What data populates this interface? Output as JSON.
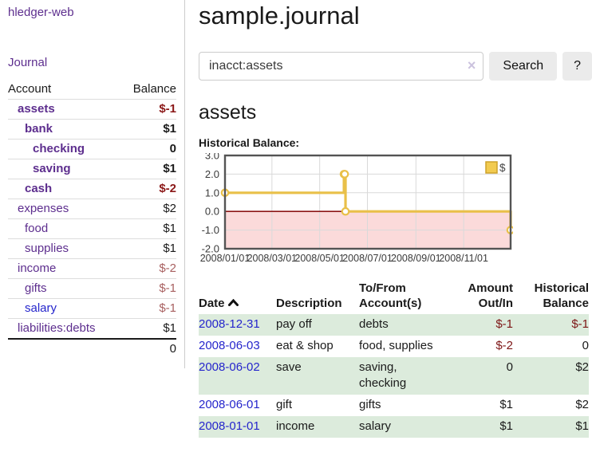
{
  "sidebar": {
    "brand": "hledger-web",
    "journal_link": "Journal",
    "accounts_table": {
      "col_account": "Account",
      "col_balance": "Balance",
      "rows": [
        {
          "name": "assets",
          "balance": "$-1"
        },
        {
          "name": "bank",
          "balance": "$1"
        },
        {
          "name": "checking",
          "balance": "0"
        },
        {
          "name": "saving",
          "balance": "$1"
        },
        {
          "name": "cash",
          "balance": "$-2"
        },
        {
          "name": "expenses",
          "balance": "$2"
        },
        {
          "name": "food",
          "balance": "$1"
        },
        {
          "name": "supplies",
          "balance": "$1"
        },
        {
          "name": "income",
          "balance": "$-2"
        },
        {
          "name": "gifts",
          "balance": "$-1"
        },
        {
          "name": "salary",
          "balance": "$-1"
        },
        {
          "name": "liabilities:debts",
          "balance": "$1"
        }
      ],
      "total": "0"
    }
  },
  "main": {
    "title": "sample.journal",
    "search": {
      "value": "inacct:assets",
      "clear_icon": "×",
      "search_button": "Search",
      "help_button": "?"
    },
    "account_heading": "assets",
    "chart_label": "Historical Balance:"
  },
  "chart_data": {
    "type": "line",
    "title": "Historical Balance",
    "step": true,
    "series": [
      {
        "name": "$",
        "color": "#e9c049",
        "points": [
          [
            "2008-01-01",
            1
          ],
          [
            "2008-06-01",
            2
          ],
          [
            "2008-06-02",
            2
          ],
          [
            "2008-06-03",
            0
          ],
          [
            "2008-12-31",
            -1
          ]
        ]
      }
    ],
    "x_range": [
      "2008-01-01",
      "2008-12-31"
    ],
    "y_range": [
      -2,
      3
    ],
    "x_ticks": [
      {
        "t": "2008-01-01",
        "label": "2008/01/01"
      },
      {
        "t": "2008-03-01",
        "label": "2008/03/01"
      },
      {
        "t": "2008-05-01",
        "label": "2008/05/01"
      },
      {
        "t": "2008-07-01",
        "label": "2008/07/01"
      },
      {
        "t": "2008-09-01",
        "label": "2008/09/01"
      },
      {
        "t": "2008-11-01",
        "label": "2008/11/01"
      }
    ],
    "y_ticks": [
      3.0,
      2.0,
      1.0,
      0.0,
      -1.0,
      -2.0
    ],
    "grid": true,
    "legend": {
      "label": "$",
      "position": "top-right"
    },
    "colors": {
      "line": "#e9c049",
      "marker_fill": "#ffffff",
      "negative_region": "#fbdada",
      "zero_line": "#8c1616",
      "gridline": "#d9d9d9",
      "border": "#545454",
      "tick_text": "#3a3a3a",
      "legend_swatch": "#f2cb50",
      "legend_swatch_border": "#cda22a"
    }
  },
  "register": {
    "headers": {
      "date": "Date",
      "description": "Description",
      "accounts": "To/From Account(s)",
      "amount": "Amount Out/In",
      "balance": "Historical Balance"
    },
    "rows": [
      {
        "date": "2008-12-31",
        "description": "pay off",
        "accounts": "debts",
        "amount": "$-1",
        "balance": "$-1"
      },
      {
        "date": "2008-06-03",
        "description": "eat & shop",
        "accounts": "food, supplies",
        "amount": "$-2",
        "balance": "0"
      },
      {
        "date": "2008-06-02",
        "description": "save",
        "accounts": "saving, checking",
        "amount": "0",
        "balance": "$2"
      },
      {
        "date": "2008-06-01",
        "description": "gift",
        "accounts": "gifts",
        "amount": "$1",
        "balance": "$2"
      },
      {
        "date": "2008-01-01",
        "description": "income",
        "accounts": "salary",
        "amount": "$1",
        "balance": "$1"
      }
    ]
  }
}
